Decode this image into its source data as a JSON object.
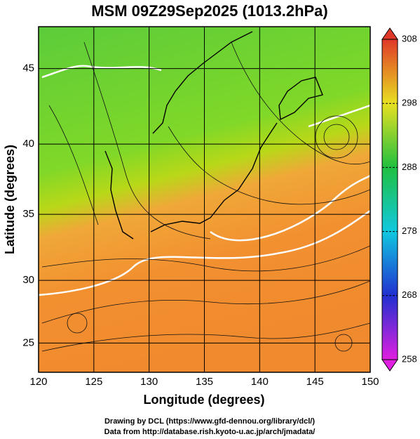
{
  "chart_data": {
    "type": "map",
    "title": "MSM 09Z29Sep2025 (1013.2hPa)",
    "xlabel": "Longitude (degrees)",
    "ylabel": "Latitude  (degrees)",
    "xlim": [
      120,
      150
    ],
    "xticks": [
      120,
      125,
      130,
      135,
      140,
      145,
      150
    ],
    "ylim": [
      22.6,
      47.6
    ],
    "yticks": [
      25,
      30,
      35,
      40,
      45
    ],
    "projection": "mercator",
    "grid": true,
    "colorbar": {
      "lim": [
        258,
        308
      ],
      "ticks": [
        258,
        268,
        278,
        288,
        298,
        308
      ],
      "colors": [
        "#e020e0",
        "#2030d0",
        "#10c8e0",
        "#20c040",
        "#e8e020",
        "#e03828"
      ]
    }
  },
  "footer": [
    "Drawing by DCL (https://www.gfd-dennou.org/library/dcl/)",
    "Data from http://database.rish.kyoto-u.ac.jp/arch/jmadata/"
  ]
}
